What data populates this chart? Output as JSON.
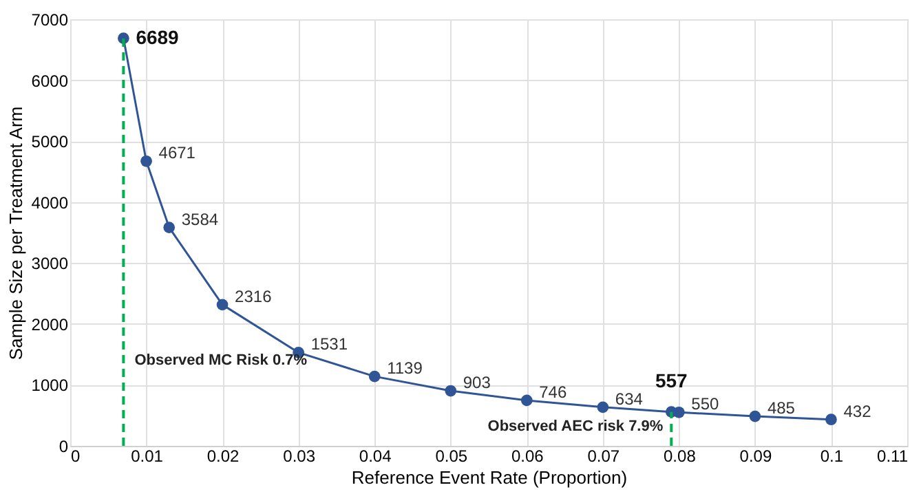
{
  "chart_data": {
    "type": "line",
    "xlabel": "Reference Event Rate (Proportion)",
    "ylabel": "Sample Size per Treatment Arm",
    "x": [
      0.007,
      0.01,
      0.013,
      0.02,
      0.03,
      0.04,
      0.05,
      0.06,
      0.07,
      0.079,
      0.08,
      0.09,
      0.1
    ],
    "series": [
      {
        "color": "#2f5597",
        "values": [
          6689,
          4671,
          3584,
          2316,
          1531,
          1139,
          903,
          746,
          634,
          557,
          550,
          485,
          432
        ]
      }
    ],
    "xlim": [
      0,
      0.11
    ],
    "xticks": [
      0,
      0.01,
      0.02,
      0.03,
      0.04,
      0.05,
      0.06,
      0.07,
      0.08,
      0.09,
      0.1,
      0.11
    ],
    "ylim": [
      0,
      7000
    ],
    "yticks": [
      0,
      1000,
      2000,
      3000,
      4000,
      5000,
      6000,
      7000
    ],
    "ref_lines": [
      {
        "axis": "x",
        "value": 0.007,
        "label": "Observed MC Risk 0.7%",
        "color": "#00b050",
        "line_style": "dashed"
      },
      {
        "axis": "x",
        "value": 0.079,
        "label": "Observed AEC risk 7.9%",
        "color": "#00b050",
        "line_style": "dashed"
      }
    ],
    "data_labels": true,
    "grid": true,
    "marker": "circle",
    "line_style": "solid"
  }
}
